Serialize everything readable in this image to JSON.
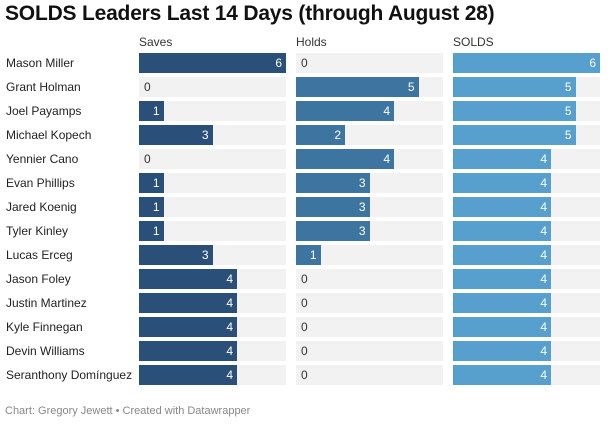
{
  "title": "SOLDS Leaders Last 14 Days (through August 28)",
  "footer": "Chart: Gregory Jewett • Created with Datawrapper",
  "chart_data": {
    "type": "bar",
    "title": "SOLDS Leaders Last 14 Days (through August 28)",
    "categories": [
      "Mason Miller",
      "Grant Holman",
      "Joel Payamps",
      "Michael Kopech",
      "Yennier Cano",
      "Evan Phillips",
      "Jared Koenig",
      "Tyler Kinley",
      "Lucas Erceg",
      "Jason Foley",
      "Justin Martinez",
      "Kyle Finnegan",
      "Devin Williams",
      "Seranthony Domínguez"
    ],
    "series": [
      {
        "name": "Saves",
        "color": "#2a4f79",
        "values": [
          6,
          0,
          1,
          3,
          0,
          1,
          1,
          1,
          3,
          4,
          4,
          4,
          4,
          4
        ]
      },
      {
        "name": "Holds",
        "color": "#3d75a0",
        "values": [
          0,
          5,
          4,
          2,
          4,
          3,
          3,
          3,
          1,
          0,
          0,
          0,
          0,
          0
        ]
      },
      {
        "name": "SOLDS",
        "color": "#57a0cd",
        "values": [
          6,
          5,
          5,
          5,
          4,
          4,
          4,
          4,
          4,
          4,
          4,
          4,
          4,
          4
        ]
      }
    ],
    "xlim": [
      0,
      6
    ]
  }
}
